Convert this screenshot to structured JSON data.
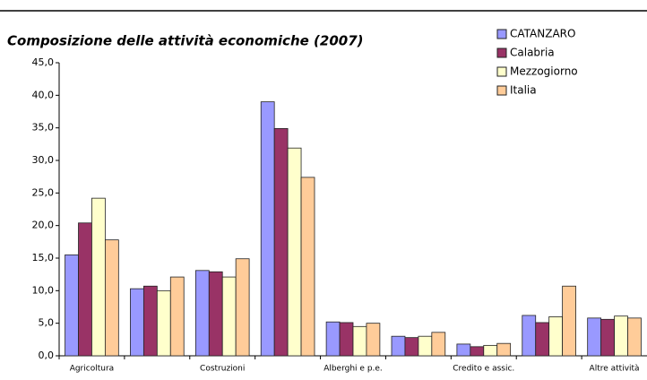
{
  "chart_data": {
    "type": "bar",
    "title": "Composizione delle attività economiche (2007)",
    "categories": [
      "Agricoltura",
      null,
      "Costruzioni",
      null,
      "Alberghi e p.e.",
      null,
      "Credito e assic.",
      null,
      "Altre attività"
    ],
    "series": [
      {
        "name": "CATANZARO",
        "color": "#9999ff",
        "values": [
          15.5,
          10.3,
          13.1,
          39.0,
          5.2,
          3.0,
          1.8,
          6.2,
          5.8
        ]
      },
      {
        "name": "Calabria",
        "color": "#993366",
        "values": [
          20.4,
          10.7,
          12.9,
          34.9,
          5.1,
          2.8,
          1.4,
          5.1,
          5.6
        ]
      },
      {
        "name": "Mezzogiorno",
        "color": "#ffffcc",
        "values": [
          24.2,
          10.0,
          12.1,
          31.9,
          4.5,
          3.0,
          1.6,
          6.0,
          6.1
        ]
      },
      {
        "name": "Italia",
        "color": "#ffcc99",
        "values": [
          17.8,
          12.1,
          14.9,
          27.4,
          5.0,
          3.6,
          1.9,
          10.7,
          5.8
        ]
      }
    ],
    "ylim": [
      0,
      45
    ],
    "yticks": [
      {
        "value": 0,
        "label": "0,0"
      },
      {
        "value": 5,
        "label": "5,0"
      },
      {
        "value": 10,
        "label": "10,0"
      },
      {
        "value": 15,
        "label": "15,0"
      },
      {
        "value": 20,
        "label": "20,0"
      },
      {
        "value": 25,
        "label": "25,0"
      },
      {
        "value": 30,
        "label": "30,0"
      },
      {
        "value": 35,
        "label": "35,0"
      },
      {
        "value": 40,
        "label": "40,0"
      },
      {
        "value": 45,
        "label": "45,0"
      }
    ],
    "legend": "top-right"
  }
}
